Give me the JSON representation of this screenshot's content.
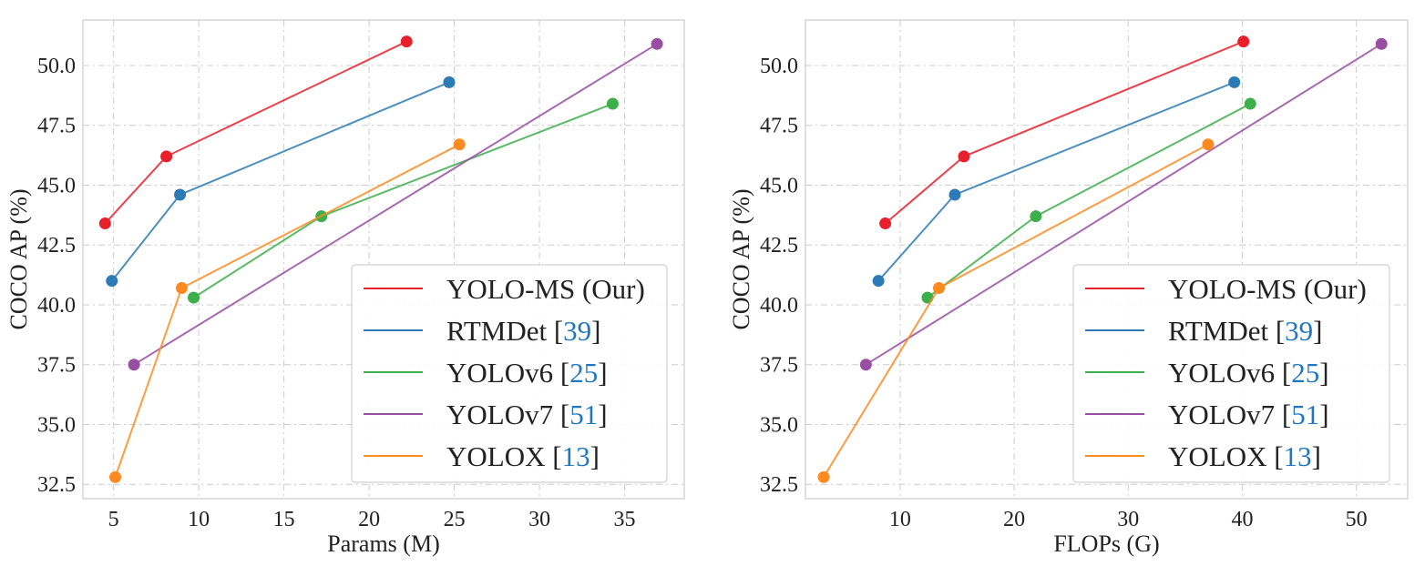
{
  "colors": {
    "YOLO-MS": "#e8202c",
    "RTMDet": "#2c7bb6",
    "YOLOv6": "#3cae4a",
    "YOLOv7": "#984ea3",
    "YOLOX": "#ff8a1f",
    "citation": "#1f77c4",
    "grid": "#cccccc",
    "frame": "#cccccc"
  },
  "chart_data": [
    {
      "type": "line",
      "xlabel": "Params (M)",
      "ylabel": "COCO AP (%)",
      "xlim": [
        3.2,
        38.5
      ],
      "ylim": [
        31.9,
        51.9
      ],
      "xticks": [
        5,
        10,
        15,
        20,
        25,
        30,
        35
      ],
      "yticks": [
        "32.5",
        "35.0",
        "37.5",
        "40.0",
        "42.5",
        "45.0",
        "47.5",
        "50.0"
      ],
      "grid": true,
      "legend_position": "lower-right",
      "series": [
        {
          "name": "YOLO-MS (Our)",
          "label": "YOLO-MS (Our)",
          "citation": "",
          "x": [
            4.5,
            8.1,
            22.2
          ],
          "y": [
            43.4,
            46.2,
            51.0
          ]
        },
        {
          "name": "RTMDet",
          "label": "RTMDet ",
          "citation": "39",
          "x": [
            4.9,
            8.9,
            24.7
          ],
          "y": [
            41.0,
            44.6,
            49.3
          ]
        },
        {
          "name": "YOLOv6",
          "label": "YOLOv6 ",
          "citation": "25",
          "x": [
            9.7,
            17.2,
            34.3
          ],
          "y": [
            40.3,
            43.7,
            48.4
          ]
        },
        {
          "name": "YOLOv7",
          "label": "YOLOv7 ",
          "citation": "51",
          "x": [
            6.2,
            36.9
          ],
          "y": [
            37.5,
            50.9
          ]
        },
        {
          "name": "YOLOX",
          "label": "YOLOX ",
          "citation": "13",
          "x": [
            5.1,
            9.0,
            25.3
          ],
          "y": [
            32.8,
            40.7,
            46.7
          ]
        }
      ]
    },
    {
      "type": "line",
      "xlabel": "FLOPs (G)",
      "ylabel": "COCO AP (%)",
      "xlim": [
        1.7,
        54.5
      ],
      "ylim": [
        31.9,
        51.9
      ],
      "xticks": [
        10,
        20,
        30,
        40,
        50
      ],
      "yticks": [
        "32.5",
        "35.0",
        "37.5",
        "40.0",
        "42.5",
        "45.0",
        "47.5",
        "50.0"
      ],
      "grid": true,
      "legend_position": "lower-right",
      "series": [
        {
          "name": "YOLO-MS (Our)",
          "label": "YOLO-MS (Our)",
          "citation": "",
          "x": [
            8.7,
            15.6,
            40.1
          ],
          "y": [
            43.4,
            46.2,
            51.0
          ]
        },
        {
          "name": "RTMDet",
          "label": "RTMDet ",
          "citation": "39",
          "x": [
            8.1,
            14.8,
            39.3
          ],
          "y": [
            41.0,
            44.6,
            49.3
          ]
        },
        {
          "name": "YOLOv6",
          "label": "YOLOv6 ",
          "citation": "25",
          "x": [
            12.4,
            21.9,
            40.7
          ],
          "y": [
            40.3,
            43.7,
            48.4
          ]
        },
        {
          "name": "YOLOv7",
          "label": "YOLOv7 ",
          "citation": "51",
          "x": [
            7.0,
            52.2
          ],
          "y": [
            37.5,
            50.9
          ]
        },
        {
          "name": "YOLOX",
          "label": "YOLOX ",
          "citation": "13",
          "x": [
            3.3,
            13.4,
            37.0
          ],
          "y": [
            32.8,
            40.7,
            46.7
          ]
        }
      ]
    }
  ]
}
